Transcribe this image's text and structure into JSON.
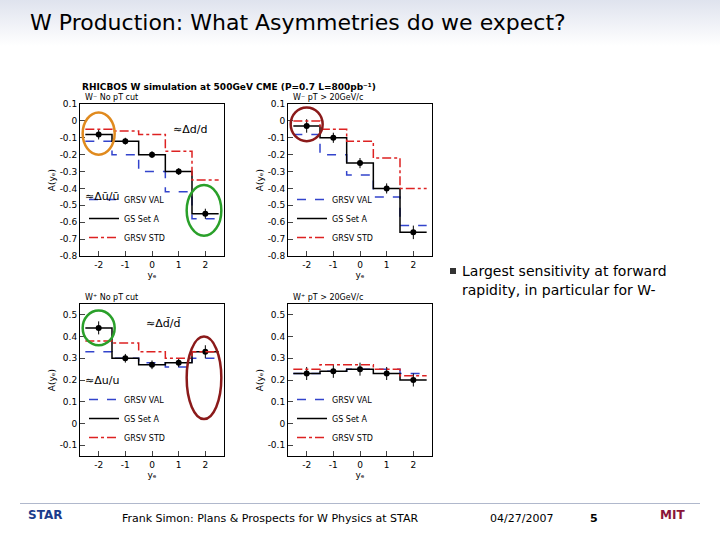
{
  "slide_title": "W Production: What Asymmetries do we expect?",
  "header": "RHICBOS W simulation at 500GeV CME (P=0.7 L=800pb⁻¹)",
  "bullet": "Largest sensitivity at forward rapidity, in particular for W-",
  "footer": {
    "text": "Frank Simon: Plans & Prospects for W Physics at STAR",
    "date": "04/27/2007",
    "page": "5",
    "logos": [
      "STAR",
      "MIT"
    ]
  },
  "chart_data": [
    {
      "type": "line",
      "title": "W⁻ No pT cut",
      "xlabel": "yₑ",
      "ylabel": "A(yₑ)",
      "bins": [
        -2.5,
        -1.5,
        -0.5,
        0.5,
        1.5,
        2.5
      ],
      "xlim": [
        -2.7,
        2.7
      ],
      "xticks": [
        -2,
        -1,
        0,
        1,
        2
      ],
      "ylim": [
        -0.8,
        0.1
      ],
      "yticks": [
        -0.8,
        -0.7,
        -0.6,
        -0.5,
        -0.4,
        -0.3,
        -0.2,
        -0.1,
        0,
        0.1
      ],
      "legend": "lower left",
      "annotations": [
        "≈Δū/ū",
        "≈Δd/d"
      ],
      "series": [
        {
          "name": "GRSV VAL",
          "color": "#3344cc",
          "line_style": "dashed",
          "values": [
            -0.12,
            -0.2,
            -0.3,
            -0.42,
            -0.58
          ]
        },
        {
          "name": "GS Set A",
          "color": "#000000",
          "line_style": "solid",
          "marker": "circle",
          "values": [
            -0.08,
            -0.12,
            -0.2,
            -0.3,
            -0.55
          ],
          "errors": [
            0.03,
            0.02,
            0.02,
            0.02,
            0.03
          ]
        },
        {
          "name": "GRSV STD",
          "color": "#dd2222",
          "line_style": "dashdot",
          "values": [
            -0.05,
            -0.06,
            -0.08,
            -0.18,
            -0.35
          ]
        }
      ]
    },
    {
      "type": "line",
      "title": "W⁻ pT > 20GeV/c",
      "xlabel": "yₑ",
      "ylabel": "A(yₑ)",
      "bins": [
        -2.5,
        -1.5,
        -0.5,
        0.5,
        1.5,
        2.5
      ],
      "xlim": [
        -2.7,
        2.7
      ],
      "xticks": [
        -2,
        -1,
        0,
        1,
        2
      ],
      "ylim": [
        -0.8,
        0.1
      ],
      "yticks": [
        -0.8,
        -0.7,
        -0.6,
        -0.5,
        -0.4,
        -0.3,
        -0.2,
        -0.1,
        0,
        0.1
      ],
      "legend": "lower left",
      "annotations": [],
      "series": [
        {
          "name": "GRSV VAL",
          "color": "#3344cc",
          "line_style": "dashed",
          "values": [
            -0.08,
            -0.2,
            -0.32,
            -0.45,
            -0.62
          ]
        },
        {
          "name": "GS Set A",
          "color": "#000000",
          "line_style": "solid",
          "marker": "circle",
          "values": [
            -0.03,
            -0.1,
            -0.25,
            -0.4,
            -0.66
          ],
          "errors": [
            0.04,
            0.03,
            0.03,
            0.03,
            0.04
          ]
        },
        {
          "name": "GRSV STD",
          "color": "#dd2222",
          "line_style": "dashdot",
          "values": [
            0,
            -0.05,
            -0.12,
            -0.22,
            -0.4
          ]
        }
      ]
    },
    {
      "type": "line",
      "title": "W⁺ No pT cut",
      "xlabel": "yₑ",
      "ylabel": "A(yₑ)",
      "bins": [
        -2.5,
        -1.5,
        -0.5,
        0.5,
        1.5,
        2.5
      ],
      "xlim": [
        -2.7,
        2.7
      ],
      "xticks": [
        -2,
        -1,
        0,
        1,
        2
      ],
      "ylim": [
        -0.15,
        0.55
      ],
      "yticks": [
        -0.1,
        0,
        0.1,
        0.2,
        0.3,
        0.4,
        0.5
      ],
      "legend": "lower left",
      "annotations": [
        "≈Δu/u",
        "≈Δd̄/d̄"
      ],
      "series": [
        {
          "name": "GRSV VAL",
          "color": "#3344cc",
          "line_style": "dashed",
          "values": [
            0.33,
            0.3,
            0.28,
            0.26,
            0.3
          ]
        },
        {
          "name": "GS Set A",
          "color": "#000000",
          "line_style": "solid",
          "marker": "circle",
          "values": [
            0.44,
            0.3,
            0.27,
            0.28,
            0.33
          ],
          "errors": [
            0.03,
            0.02,
            0.02,
            0.02,
            0.03
          ]
        },
        {
          "name": "GRSV STD",
          "color": "#dd2222",
          "line_style": "dashdot",
          "values": [
            0.38,
            0.37,
            0.33,
            0.3,
            0.33
          ]
        }
      ]
    },
    {
      "type": "line",
      "title": "W⁺ pT > 20GeV/c",
      "xlabel": "yₑ",
      "ylabel": "A(yₑ)",
      "bins": [
        -2.5,
        -1.5,
        -0.5,
        0.5,
        1.5,
        2.5
      ],
      "xlim": [
        -2.7,
        2.7
      ],
      "xticks": [
        -2,
        -1,
        0,
        1,
        2
      ],
      "ylim": [
        -0.15,
        0.55
      ],
      "yticks": [
        -0.1,
        0,
        0.1,
        0.2,
        0.3,
        0.4,
        0.5
      ],
      "legend": "lower left",
      "annotations": [],
      "series": [
        {
          "name": "GRSV VAL",
          "color": "#3344cc",
          "line_style": "dashed",
          "values": [
            0.23,
            0.24,
            0.25,
            0.25,
            0.23
          ]
        },
        {
          "name": "GS Set A",
          "color": "#000000",
          "line_style": "solid",
          "marker": "circle",
          "values": [
            0.23,
            0.24,
            0.25,
            0.23,
            0.2
          ],
          "errors": [
            0.03,
            0.03,
            0.03,
            0.03,
            0.03
          ]
        },
        {
          "name": "GRSV STD",
          "color": "#dd2222",
          "line_style": "dashdot",
          "values": [
            0.25,
            0.27,
            0.27,
            0.25,
            0.22
          ]
        }
      ]
    }
  ]
}
